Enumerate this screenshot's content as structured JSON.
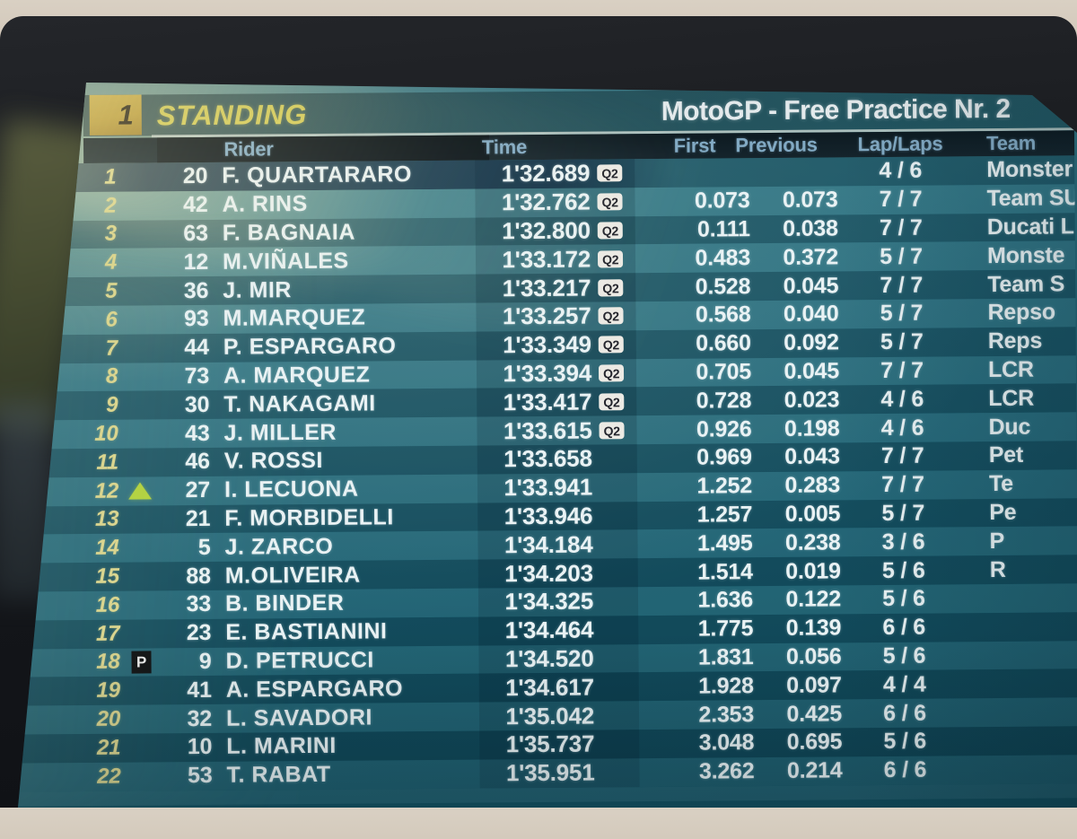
{
  "header": {
    "session_number": "1",
    "title": "STANDING",
    "session": "MotoGP - Free Practice Nr. 2"
  },
  "columns": {
    "rider": "Rider",
    "time": "Time",
    "first": "First",
    "previous": "Previous",
    "laps": "Lap/Laps",
    "team": "Team"
  },
  "colors": {
    "badge_gold": "#c2a23d",
    "title_yellow": "#d8ce58",
    "header_blue": "#82aac4",
    "screen_teal_light": "#2f7280",
    "screen_teal_dark": "#114e5e",
    "arrow_green": "#b2d23b",
    "q2_badge_bg": "#eceae4",
    "position_khaki": "#dbd58c"
  },
  "rows": [
    {
      "pos": "1",
      "marker": "",
      "num": "20",
      "name": "F. QUARTARARO",
      "time": "1'32.689",
      "q2": "Q2",
      "first": "",
      "previous": "",
      "laps": "4 / 6",
      "team": "Monster"
    },
    {
      "pos": "2",
      "marker": "",
      "num": "42",
      "name": "A. RINS",
      "time": "1'32.762",
      "q2": "Q2",
      "first": "0.073",
      "previous": "0.073",
      "laps": "7 / 7",
      "team": "Team SU"
    },
    {
      "pos": "3",
      "marker": "",
      "num": "63",
      "name": "F. BAGNAIA",
      "time": "1'32.800",
      "q2": "Q2",
      "first": "0.111",
      "previous": "0.038",
      "laps": "7 / 7",
      "team": "Ducati L"
    },
    {
      "pos": "4",
      "marker": "",
      "num": "12",
      "name": "M.VIÑALES",
      "time": "1'33.172",
      "q2": "Q2",
      "first": "0.483",
      "previous": "0.372",
      "laps": "5 / 7",
      "team": "Monste"
    },
    {
      "pos": "5",
      "marker": "",
      "num": "36",
      "name": "J. MIR",
      "time": "1'33.217",
      "q2": "Q2",
      "first": "0.528",
      "previous": "0.045",
      "laps": "7 / 7",
      "team": "Team S"
    },
    {
      "pos": "6",
      "marker": "",
      "num": "93",
      "name": "M.MARQUEZ",
      "time": "1'33.257",
      "q2": "Q2",
      "first": "0.568",
      "previous": "0.040",
      "laps": "5 / 7",
      "team": "Repso"
    },
    {
      "pos": "7",
      "marker": "",
      "num": "44",
      "name": "P. ESPARGARO",
      "time": "1'33.349",
      "q2": "Q2",
      "first": "0.660",
      "previous": "0.092",
      "laps": "5 / 7",
      "team": "Reps"
    },
    {
      "pos": "8",
      "marker": "",
      "num": "73",
      "name": "A. MARQUEZ",
      "time": "1'33.394",
      "q2": "Q2",
      "first": "0.705",
      "previous": "0.045",
      "laps": "7 / 7",
      "team": "LCR"
    },
    {
      "pos": "9",
      "marker": "",
      "num": "30",
      "name": "T. NAKAGAMI",
      "time": "1'33.417",
      "q2": "Q2",
      "first": "0.728",
      "previous": "0.023",
      "laps": "4 / 6",
      "team": "LCR"
    },
    {
      "pos": "10",
      "marker": "",
      "num": "43",
      "name": "J. MILLER",
      "time": "1'33.615",
      "q2": "Q2",
      "first": "0.926",
      "previous": "0.198",
      "laps": "4 / 6",
      "team": "Duc"
    },
    {
      "pos": "11",
      "marker": "",
      "num": "46",
      "name": "V. ROSSI",
      "time": "1'33.658",
      "q2": "",
      "first": "0.969",
      "previous": "0.043",
      "laps": "7 / 7",
      "team": "Pet"
    },
    {
      "pos": "12",
      "marker": "up",
      "num": "27",
      "name": "I. LECUONA",
      "time": "1'33.941",
      "q2": "",
      "first": "1.252",
      "previous": "0.283",
      "laps": "7 / 7",
      "team": "Te"
    },
    {
      "pos": "13",
      "marker": "",
      "num": "21",
      "name": "F. MORBIDELLI",
      "time": "1'33.946",
      "q2": "",
      "first": "1.257",
      "previous": "0.005",
      "laps": "5 / 7",
      "team": "Pe"
    },
    {
      "pos": "14",
      "marker": "",
      "num": "5",
      "name": "J. ZARCO",
      "time": "1'34.184",
      "q2": "",
      "first": "1.495",
      "previous": "0.238",
      "laps": "3 / 6",
      "team": "P"
    },
    {
      "pos": "15",
      "marker": "",
      "num": "88",
      "name": "M.OLIVEIRA",
      "time": "1'34.203",
      "q2": "",
      "first": "1.514",
      "previous": "0.019",
      "laps": "5 / 6",
      "team": "R"
    },
    {
      "pos": "16",
      "marker": "",
      "num": "33",
      "name": "B. BINDER",
      "time": "1'34.325",
      "q2": "",
      "first": "1.636",
      "previous": "0.122",
      "laps": "5 / 6",
      "team": ""
    },
    {
      "pos": "17",
      "marker": "",
      "num": "23",
      "name": "E. BASTIANINI",
      "time": "1'34.464",
      "q2": "",
      "first": "1.775",
      "previous": "0.139",
      "laps": "6 / 6",
      "team": ""
    },
    {
      "pos": "18",
      "marker": "P",
      "num": "9",
      "name": "D. PETRUCCI",
      "time": "1'34.520",
      "q2": "",
      "first": "1.831",
      "previous": "0.056",
      "laps": "5 / 6",
      "team": ""
    },
    {
      "pos": "19",
      "marker": "",
      "num": "41",
      "name": "A. ESPARGARO",
      "time": "1'34.617",
      "q2": "",
      "first": "1.928",
      "previous": "0.097",
      "laps": "4 / 4",
      "team": ""
    },
    {
      "pos": "20",
      "marker": "",
      "num": "32",
      "name": "L. SAVADORI",
      "time": "1'35.042",
      "q2": "",
      "first": "2.353",
      "previous": "0.425",
      "laps": "6 / 6",
      "team": ""
    },
    {
      "pos": "21",
      "marker": "",
      "num": "10",
      "name": "L. MARINI",
      "time": "1'35.737",
      "q2": "",
      "first": "3.048",
      "previous": "0.695",
      "laps": "5 / 6",
      "team": ""
    },
    {
      "pos": "22",
      "marker": "",
      "num": "53",
      "name": "T. RABAT",
      "time": "1'35.951",
      "q2": "",
      "first": "3.262",
      "previous": "0.214",
      "laps": "6 / 6",
      "team": ""
    }
  ]
}
